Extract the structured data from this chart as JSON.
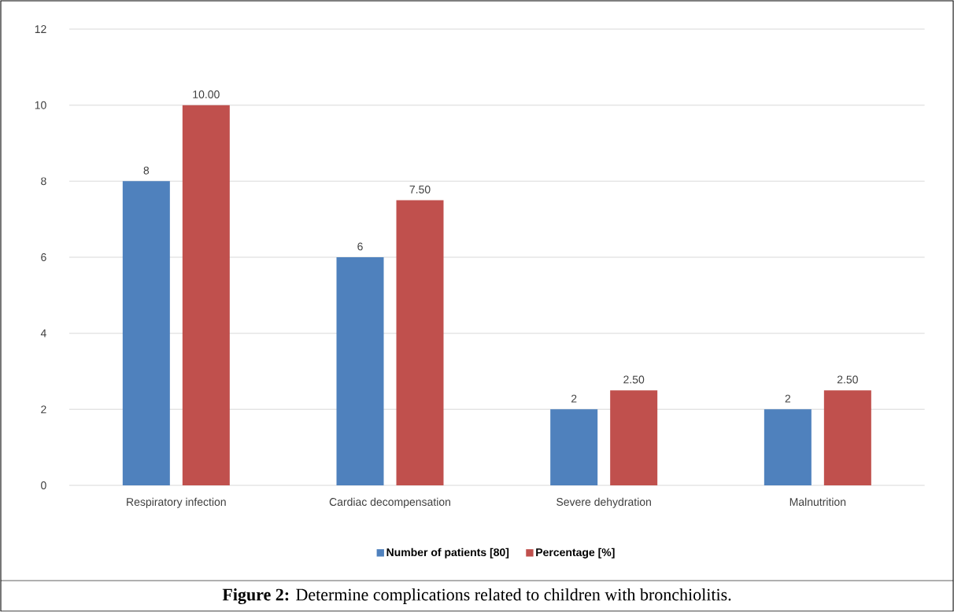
{
  "chart_data": {
    "type": "bar",
    "categories": [
      "Respiratory infection",
      "Cardiac decompensation",
      "Severe dehydration",
      "Malnutrition"
    ],
    "series": [
      {
        "name": "Number of patients [80]",
        "color": "#4f81bd",
        "values": [
          8,
          6,
          2,
          2
        ],
        "value_labels": [
          "8",
          "6",
          "2",
          "2"
        ]
      },
      {
        "name": "Percentage [%]",
        "color": "#c0504d",
        "values": [
          10,
          7.5,
          2.5,
          2.5
        ],
        "value_labels": [
          "10.00",
          "7.50",
          "2.50",
          "2.50"
        ]
      }
    ],
    "ylim": [
      0,
      12
    ],
    "yticks": [
      0,
      2,
      4,
      6,
      8,
      10,
      12
    ],
    "grid": "y",
    "legend": "bottom",
    "annotations": [
      "**Figure 2:** Determine complications related to children with bronchiolitis."
    ]
  }
}
